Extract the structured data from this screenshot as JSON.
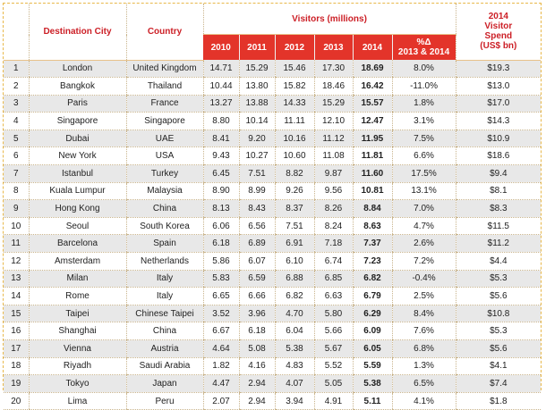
{
  "headers": {
    "destination_city": "Destination City",
    "country": "Country",
    "visitors_group": "Visitors (millions)",
    "spend": [
      "2014",
      "Visitor",
      "Spend",
      "(US$ bn)"
    ],
    "years": [
      "2010",
      "2011",
      "2012",
      "2013",
      "2014"
    ],
    "pct_change": [
      "%Δ",
      "2013 & 2014"
    ]
  },
  "rows": [
    {
      "rank": "1",
      "city": "London",
      "country": "United Kingdom",
      "y2010": "14.71",
      "y2011": "15.29",
      "y2012": "15.46",
      "y2013": "17.30",
      "y2014": "18.69",
      "pct": "8.0%",
      "spend": "$19.3"
    },
    {
      "rank": "2",
      "city": "Bangkok",
      "country": "Thailand",
      "y2010": "10.44",
      "y2011": "13.80",
      "y2012": "15.82",
      "y2013": "18.46",
      "y2014": "16.42",
      "pct": "-11.0%",
      "spend": "$13.0"
    },
    {
      "rank": "3",
      "city": "Paris",
      "country": "France",
      "y2010": "13.27",
      "y2011": "13.88",
      "y2012": "14.33",
      "y2013": "15.29",
      "y2014": "15.57",
      "pct": "1.8%",
      "spend": "$17.0"
    },
    {
      "rank": "4",
      "city": "Singapore",
      "country": "Singapore",
      "y2010": "8.80",
      "y2011": "10.14",
      "y2012": "11.11",
      "y2013": "12.10",
      "y2014": "12.47",
      "pct": "3.1%",
      "spend": "$14.3"
    },
    {
      "rank": "5",
      "city": "Dubai",
      "country": "UAE",
      "y2010": "8.41",
      "y2011": "9.20",
      "y2012": "10.16",
      "y2013": "11.12",
      "y2014": "11.95",
      "pct": "7.5%",
      "spend": "$10.9"
    },
    {
      "rank": "6",
      "city": "New York",
      "country": "USA",
      "y2010": "9.43",
      "y2011": "10.27",
      "y2012": "10.60",
      "y2013": "11.08",
      "y2014": "11.81",
      "pct": "6.6%",
      "spend": "$18.6"
    },
    {
      "rank": "7",
      "city": "Istanbul",
      "country": "Turkey",
      "y2010": "6.45",
      "y2011": "7.51",
      "y2012": "8.82",
      "y2013": "9.87",
      "y2014": "11.60",
      "pct": "17.5%",
      "spend": "$9.4"
    },
    {
      "rank": "8",
      "city": "Kuala Lumpur",
      "country": "Malaysia",
      "y2010": "8.90",
      "y2011": "8.99",
      "y2012": "9.26",
      "y2013": "9.56",
      "y2014": "10.81",
      "pct": "13.1%",
      "spend": "$8.1"
    },
    {
      "rank": "9",
      "city": "Hong Kong",
      "country": "China",
      "y2010": "8.13",
      "y2011": "8.43",
      "y2012": "8.37",
      "y2013": "8.26",
      "y2014": "8.84",
      "pct": "7.0%",
      "spend": "$8.3"
    },
    {
      "rank": "10",
      "city": "Seoul",
      "country": "South Korea",
      "y2010": "6.06",
      "y2011": "6.56",
      "y2012": "7.51",
      "y2013": "8.24",
      "y2014": "8.63",
      "pct": "4.7%",
      "spend": "$11.5"
    },
    {
      "rank": "11",
      "city": "Barcelona",
      "country": "Spain",
      "y2010": "6.18",
      "y2011": "6.89",
      "y2012": "6.91",
      "y2013": "7.18",
      "y2014": "7.37",
      "pct": "2.6%",
      "spend": "$11.2"
    },
    {
      "rank": "12",
      "city": "Amsterdam",
      "country": "Netherlands",
      "y2010": "5.86",
      "y2011": "6.07",
      "y2012": "6.10",
      "y2013": "6.74",
      "y2014": "7.23",
      "pct": "7.2%",
      "spend": "$4.4"
    },
    {
      "rank": "13",
      "city": "Milan",
      "country": "Italy",
      "y2010": "5.83",
      "y2011": "6.59",
      "y2012": "6.88",
      "y2013": "6.85",
      "y2014": "6.82",
      "pct": "-0.4%",
      "spend": "$5.3"
    },
    {
      "rank": "14",
      "city": "Rome",
      "country": "Italy",
      "y2010": "6.65",
      "y2011": "6.66",
      "y2012": "6.82",
      "y2013": "6.63",
      "y2014": "6.79",
      "pct": "2.5%",
      "spend": "$5.6"
    },
    {
      "rank": "15",
      "city": "Taipei",
      "country": "Chinese Taipei",
      "y2010": "3.52",
      "y2011": "3.96",
      "y2012": "4.70",
      "y2013": "5.80",
      "y2014": "6.29",
      "pct": "8.4%",
      "spend": "$10.8"
    },
    {
      "rank": "16",
      "city": "Shanghai",
      "country": "China",
      "y2010": "6.67",
      "y2011": "6.18",
      "y2012": "6.04",
      "y2013": "5.66",
      "y2014": "6.09",
      "pct": "7.6%",
      "spend": "$5.3"
    },
    {
      "rank": "17",
      "city": "Vienna",
      "country": "Austria",
      "y2010": "4.64",
      "y2011": "5.08",
      "y2012": "5.38",
      "y2013": "5.67",
      "y2014": "6.05",
      "pct": "6.8%",
      "spend": "$5.6"
    },
    {
      "rank": "18",
      "city": "Riyadh",
      "country": "Saudi Arabia",
      "y2010": "1.82",
      "y2011": "4.16",
      "y2012": "4.83",
      "y2013": "5.52",
      "y2014": "5.59",
      "pct": "1.3%",
      "spend": "$4.1"
    },
    {
      "rank": "19",
      "city": "Tokyo",
      "country": "Japan",
      "y2010": "4.47",
      "y2011": "2.94",
      "y2012": "4.07",
      "y2013": "5.05",
      "y2014": "5.38",
      "pct": "6.5%",
      "spend": "$7.4"
    },
    {
      "rank": "20",
      "city": "Lima",
      "country": "Peru",
      "y2010": "2.07",
      "y2011": "2.94",
      "y2012": "3.94",
      "y2013": "4.91",
      "y2014": "5.11",
      "pct": "4.1%",
      "spend": "$1.8"
    }
  ],
  "colors": {
    "accent_red": "#e3342a",
    "header_text_red": "#cc1f26",
    "row_shade": "#e8e8e8",
    "frame_gold": "#e8b84a"
  }
}
